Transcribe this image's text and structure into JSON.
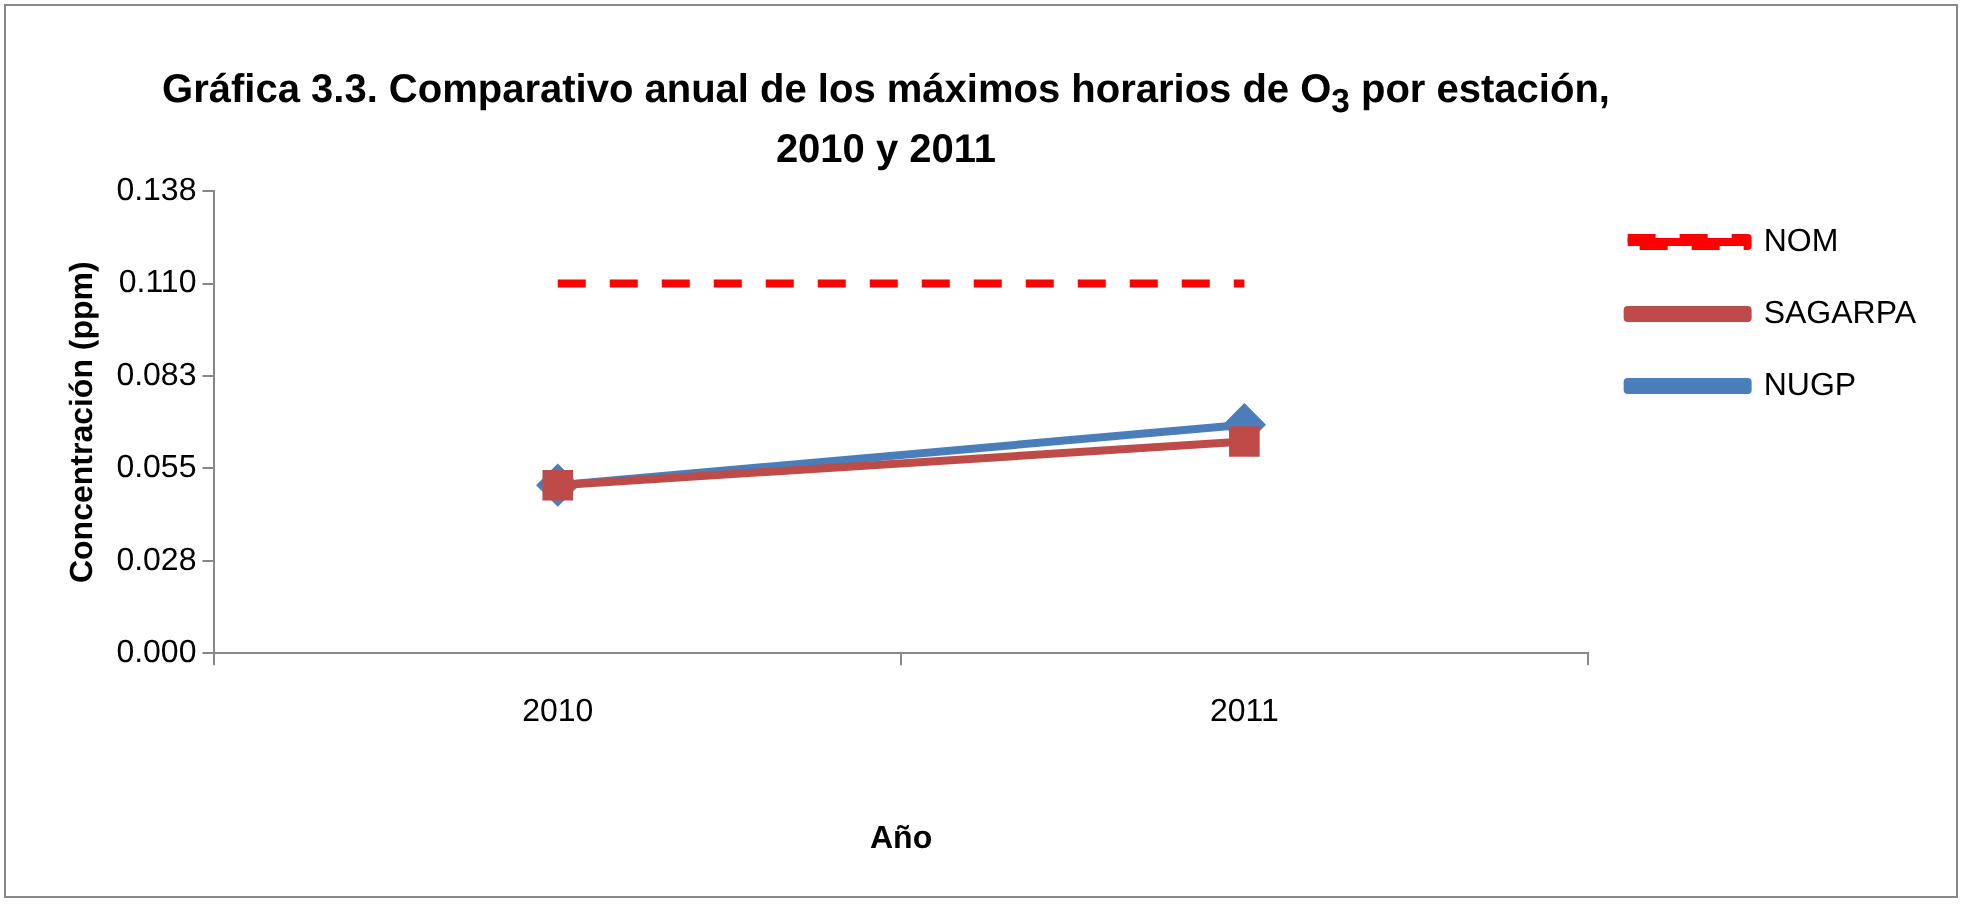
{
  "chart_data": {
    "type": "line",
    "title": "Gráfica 3.3. Comparativo anual de los máximos horarios de O$_{3}$ por estación, 2010 y 2011",
    "xlabel": "Año",
    "ylabel": "Concentración (ppm)",
    "categories": [
      "2010",
      "2011"
    ],
    "series": [
      {
        "name": "NUGP",
        "color": "#4a7ebb",
        "values": [
          0.05,
          0.068
        ],
        "marker": "diamond",
        "line_style": "solid"
      },
      {
        "name": "SAGARPA",
        "color": "#be4b48",
        "values": [
          0.05,
          0.063
        ],
        "marker": "square",
        "line_style": "solid"
      },
      {
        "name": "NOM",
        "color": "#ff0000",
        "values": [
          0.11,
          0.11
        ],
        "marker": "none",
        "line_style": "dashed"
      }
    ],
    "ylim": [
      0,
      0.1375
    ],
    "yticks": [
      {
        "value": 0,
        "label": "0.000"
      },
      {
        "value": 0.0275,
        "label": "0.028"
      },
      {
        "value": 0.055,
        "label": "0.055"
      },
      {
        "value": 0.0825,
        "label": "0.083"
      },
      {
        "value": 0.11,
        "label": "0.110"
      },
      {
        "value": 0.1375,
        "label": "0.138"
      }
    ],
    "grid": false,
    "legend": "right"
  }
}
